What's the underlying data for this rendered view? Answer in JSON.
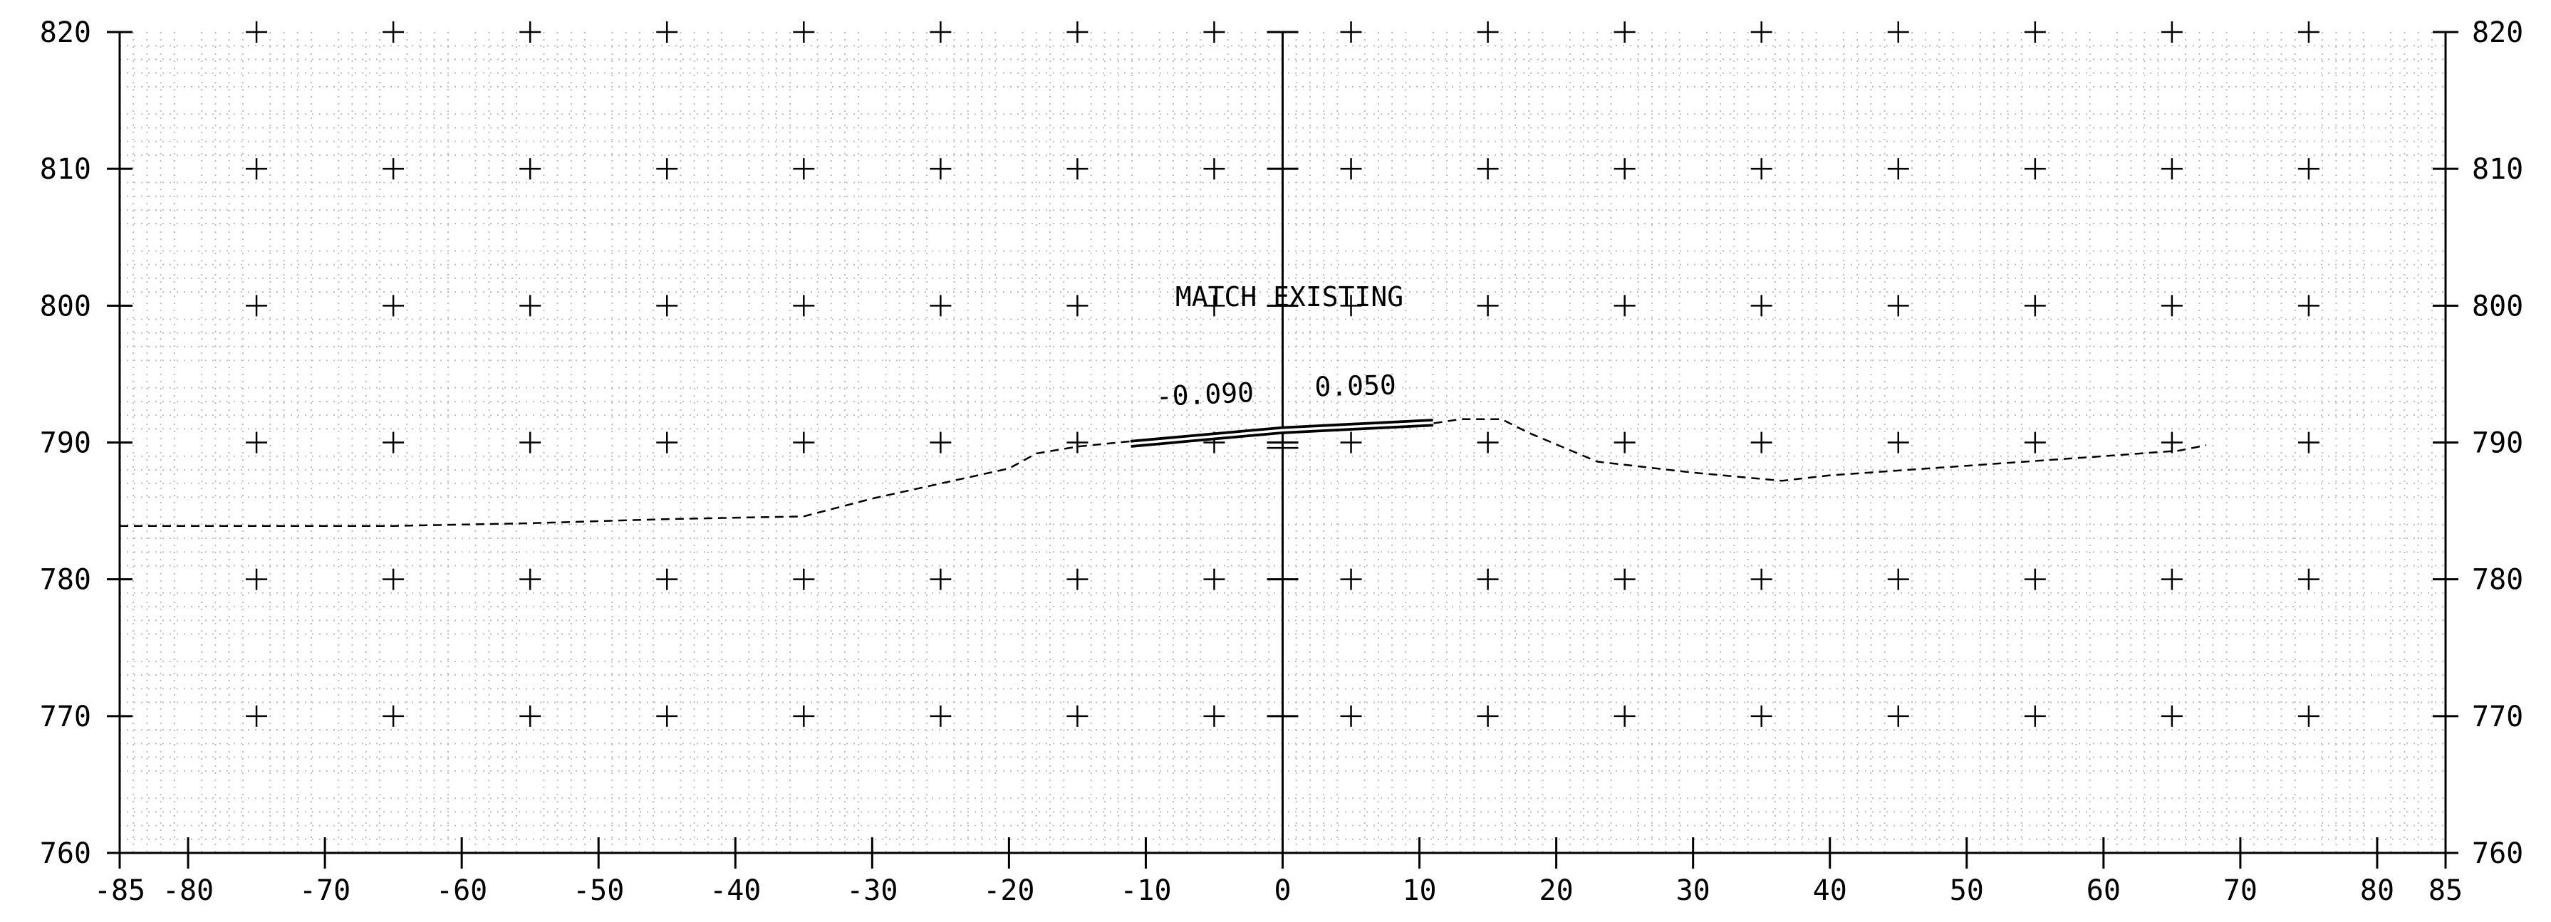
{
  "chart_data": {
    "type": "line",
    "title": "",
    "xlabel": "",
    "ylabel": "",
    "xlim": [
      -85,
      85
    ],
    "ylim": [
      760,
      820
    ],
    "x_ticks": [
      -85,
      -80,
      -70,
      -60,
      -50,
      -40,
      -30,
      -20,
      -10,
      0,
      10,
      20,
      30,
      40,
      50,
      60,
      70,
      80,
      85
    ],
    "x_tick_labels": [
      "-85",
      "-80",
      "-70",
      "-60",
      "-50",
      "-40",
      "-30",
      "-20",
      "-10",
      "0",
      "10",
      "20",
      "30",
      "40",
      "50",
      "60",
      "70",
      "80",
      "85"
    ],
    "y_ticks": [
      760,
      770,
      780,
      790,
      800,
      810,
      820
    ],
    "y_tick_labels": [
      "760",
      "770",
      "780",
      "790",
      "800",
      "810",
      "820"
    ],
    "grid": "dotted minor grid with plus-sign markers at major intersections",
    "series": [
      {
        "style": "dashed",
        "points": [
          [
            -85,
            783.9
          ],
          [
            -65,
            783.9
          ],
          [
            -55,
            784.1
          ],
          [
            -45,
            784.4
          ],
          [
            -35,
            784.6
          ],
          [
            -30,
            785.9
          ],
          [
            -25,
            787.0
          ],
          [
            -20,
            788.1
          ],
          [
            -18,
            789.2
          ],
          [
            -15,
            789.7
          ],
          [
            -11,
            790.1
          ],
          [
            0,
            790.9
          ],
          [
            11,
            791.4
          ],
          [
            13,
            791.7
          ],
          [
            16,
            791.7
          ],
          [
            18,
            790.7
          ],
          [
            23,
            788.6
          ],
          [
            30,
            787.8
          ],
          [
            36.5,
            787.2
          ],
          [
            40,
            787.6
          ],
          [
            50,
            788.3
          ],
          [
            60,
            789.0
          ],
          [
            65.5,
            789.4
          ],
          [
            67.5,
            789.8
          ]
        ]
      },
      {
        "style": "solid-double",
        "points": [
          [
            -11.1,
            789.9
          ],
          [
            0,
            790.9
          ],
          [
            11,
            791.45
          ]
        ]
      }
    ],
    "annotations": [
      {
        "text": "MATCH EXISTING",
        "x": 0,
        "y": 799.9
      },
      {
        "text": "-0.090",
        "x": -5.5,
        "y": 793.2,
        "slope": -0.09
      },
      {
        "text": "0.050",
        "x": 5.5,
        "y": 793.6,
        "slope": 0.05
      }
    ]
  }
}
